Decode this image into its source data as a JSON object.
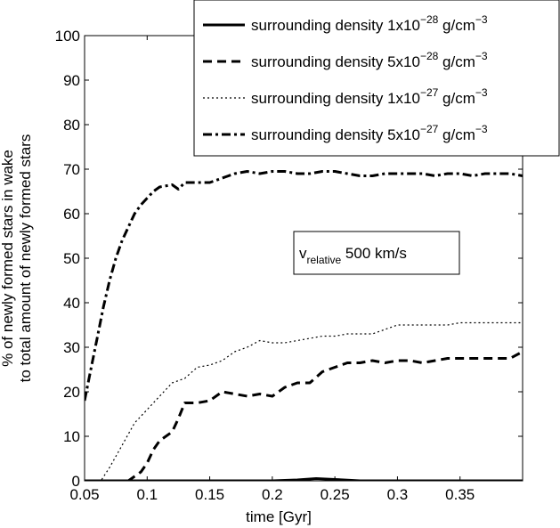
{
  "chart_data": {
    "type": "line",
    "title": "",
    "xlabel": "time [Gyr]",
    "ylabel_line1": "% of newly formed stars in wake",
    "ylabel_line2": "to total amount of newly formed stars",
    "xlim": [
      0.05,
      0.4
    ],
    "ylim": [
      0,
      100
    ],
    "x_ticks": [
      0.05,
      0.1,
      0.15,
      0.2,
      0.25,
      0.3,
      0.35
    ],
    "x_tick_labels": [
      "0.05",
      "0.1",
      "0.15",
      "0.2",
      "0.25",
      "0.3",
      "0.35"
    ],
    "y_ticks": [
      0,
      10,
      20,
      30,
      40,
      50,
      60,
      70,
      80,
      90,
      100
    ],
    "y_tick_labels": [
      "0",
      "10",
      "20",
      "30",
      "40",
      "50",
      "60",
      "70",
      "80",
      "90",
      "100"
    ],
    "grid": false,
    "legend_position": "top-right",
    "annotation": {
      "main": "v",
      "sub": "relative",
      "rest": " 500 km/s"
    },
    "series": [
      {
        "name": "surrounding density 1x10-28 g/cm-3",
        "legend": {
          "pre": "surrounding density 1x10",
          "exp1": "−28",
          "mid": " g/cm",
          "exp2": "−3"
        },
        "style": "solid",
        "color": "#000000",
        "x": [
          0.05,
          0.1,
          0.15,
          0.2,
          0.22,
          0.235,
          0.25,
          0.27,
          0.3,
          0.35,
          0.4
        ],
        "y": [
          0,
          0,
          0,
          0,
          0.2,
          0.5,
          0.3,
          0,
          0,
          0,
          0
        ]
      },
      {
        "name": "surrounding density 5x10-28 g/cm-3",
        "legend": {
          "pre": "surrounding density 5x10",
          "exp1": "−28",
          "mid": " g/cm",
          "exp2": "−3"
        },
        "style": "dashed",
        "color": "#000000",
        "x": [
          0.05,
          0.085,
          0.095,
          0.1,
          0.105,
          0.11,
          0.12,
          0.125,
          0.13,
          0.14,
          0.15,
          0.16,
          0.17,
          0.18,
          0.19,
          0.2,
          0.21,
          0.22,
          0.23,
          0.24,
          0.25,
          0.26,
          0.27,
          0.28,
          0.29,
          0.3,
          0.31,
          0.32,
          0.33,
          0.34,
          0.35,
          0.36,
          0.37,
          0.38,
          0.39,
          0.4
        ],
        "y": [
          0,
          0,
          2,
          4,
          7,
          9,
          11,
          14,
          17.5,
          17.5,
          18,
          20,
          19.5,
          19,
          19.5,
          19,
          21,
          22,
          22,
          24.5,
          25.5,
          26.5,
          26.5,
          27,
          26.5,
          27,
          27,
          26.5,
          27,
          27.5,
          27.5,
          27.5,
          27.5,
          27.5,
          27.5,
          29
        ]
      },
      {
        "name": "surrounding density 1x10-27 g/cm-3",
        "legend": {
          "pre": "surrounding density 1x10",
          "exp1": "−27",
          "mid": " g/cm",
          "exp2": "−3"
        },
        "style": "dotted",
        "color": "#000000",
        "x": [
          0.05,
          0.063,
          0.07,
          0.08,
          0.09,
          0.1,
          0.11,
          0.12,
          0.13,
          0.14,
          0.15,
          0.16,
          0.17,
          0.18,
          0.19,
          0.2,
          0.21,
          0.22,
          0.23,
          0.24,
          0.25,
          0.26,
          0.27,
          0.28,
          0.29,
          0.3,
          0.31,
          0.32,
          0.33,
          0.34,
          0.35,
          0.36,
          0.37,
          0.38,
          0.39,
          0.4
        ],
        "y": [
          0,
          0,
          3,
          8,
          13,
          16,
          19,
          22,
          23,
          25.5,
          26,
          27,
          29,
          30,
          31.5,
          31,
          31,
          31.5,
          32,
          32.5,
          32.5,
          33,
          33,
          33,
          34,
          35,
          35,
          35,
          35,
          35,
          35.5,
          35.5,
          35.5,
          35.5,
          35.5,
          35.5
        ]
      },
      {
        "name": "surrounding density 5x10-27 g/cm-3",
        "legend": {
          "pre": "surrounding density 5x10",
          "exp1": "−27",
          "mid": " g/cm",
          "exp2": "−3"
        },
        "style": "dashdot",
        "color": "#000000",
        "x": [
          0.05,
          0.055,
          0.06,
          0.065,
          0.07,
          0.075,
          0.08,
          0.085,
          0.09,
          0.095,
          0.1,
          0.105,
          0.11,
          0.12,
          0.125,
          0.13,
          0.14,
          0.15,
          0.16,
          0.17,
          0.18,
          0.19,
          0.2,
          0.21,
          0.22,
          0.23,
          0.24,
          0.25,
          0.26,
          0.27,
          0.28,
          0.29,
          0.3,
          0.31,
          0.32,
          0.33,
          0.34,
          0.35,
          0.36,
          0.37,
          0.38,
          0.39,
          0.4
        ],
        "y": [
          18,
          25,
          32,
          39,
          45,
          50,
          54,
          57,
          60,
          62,
          63.5,
          65,
          66,
          66.5,
          65.5,
          67,
          67,
          67,
          68,
          69,
          69.5,
          69,
          69.5,
          69.5,
          69,
          69,
          69.5,
          69.5,
          69,
          68.5,
          68.5,
          69,
          69,
          69,
          69,
          68.5,
          69,
          69,
          68.5,
          69,
          69,
          69,
          68.5
        ]
      }
    ]
  }
}
